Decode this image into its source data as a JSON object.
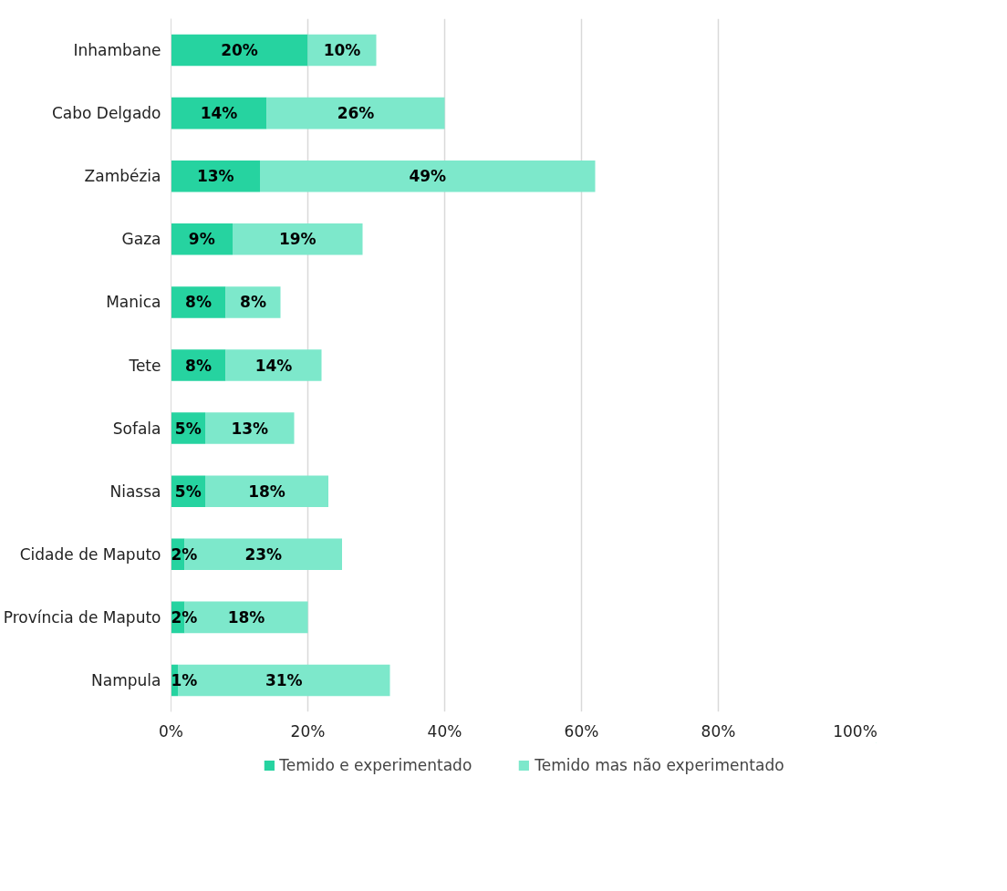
{
  "chart_data": {
    "type": "bar",
    "orientation": "horizontal",
    "stacked": true,
    "categories": [
      "Inhambane",
      "Cabo Delgado",
      "Zambézia",
      "Gaza",
      "Manica",
      "Tete",
      "Sofala",
      "Niassa",
      "Cidade de Maputo",
      "Província de Maputo",
      "Nampula"
    ],
    "series": [
      {
        "name": "Temido e experimentado",
        "color": "#26d3a0",
        "values": [
          20,
          14,
          13,
          9,
          8,
          8,
          5,
          5,
          2,
          2,
          1
        ],
        "value_labels": [
          "20%",
          "14%",
          "13%",
          "9%",
          "8%",
          "8%",
          "5%",
          "5%",
          "2%",
          "2%",
          "1%"
        ]
      },
      {
        "name": "Temido mas não experimentado",
        "color": "#7de8cb",
        "values": [
          10,
          26,
          49,
          19,
          8,
          14,
          13,
          18,
          23,
          18,
          31
        ],
        "value_labels": [
          "10%",
          "26%",
          "49%",
          "19%",
          "8%",
          "14%",
          "13%",
          "18%",
          "23%",
          "18%",
          "31%"
        ]
      }
    ],
    "xlim": [
      0,
      100
    ],
    "xticks": [
      {
        "value": 0,
        "label": "0%"
      },
      {
        "value": 20,
        "label": "20%"
      },
      {
        "value": 40,
        "label": "40%"
      },
      {
        "value": 60,
        "label": "60%"
      },
      {
        "value": 80,
        "label": "80%"
      },
      {
        "value": 100,
        "label": "100%"
      }
    ],
    "data_labels": true,
    "grid": "x",
    "legend": "bottom"
  }
}
